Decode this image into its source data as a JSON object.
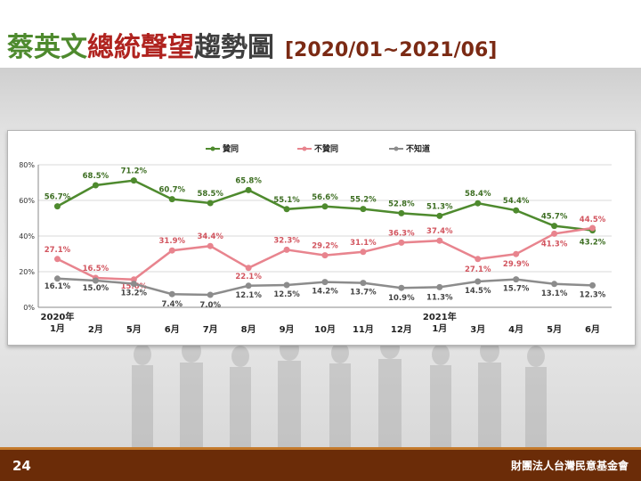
{
  "slide": {
    "title_part1": "蔡英文",
    "title_part2": "總統聲望",
    "title_part3": "趨勢圖",
    "date_range": "[2020/01~2021/06]",
    "page_number": "24",
    "organization": "財團法人台灣民意基金會"
  },
  "colors": {
    "approve": "#4e8a2e",
    "disapprove": "#e8848e",
    "unknown": "#8c8c8c",
    "footer": "#6b2c08"
  },
  "chart_data": {
    "type": "line",
    "categories": [
      "2020年 1月",
      "2月",
      "5月",
      "6月",
      "7月",
      "8月",
      "9月",
      "10月",
      "11月",
      "12月",
      "2021年 1月",
      "3月",
      "4月",
      "5月",
      "6月"
    ],
    "category_lines": [
      [
        "2020年",
        "1月"
      ],
      [
        "2月"
      ],
      [
        "5月"
      ],
      [
        "6月"
      ],
      [
        "7月"
      ],
      [
        "8月"
      ],
      [
        "9月"
      ],
      [
        "10月"
      ],
      [
        "11月"
      ],
      [
        "12月"
      ],
      [
        "2021年",
        "1月"
      ],
      [
        "3月"
      ],
      [
        "4月"
      ],
      [
        "5月"
      ],
      [
        "6月"
      ]
    ],
    "series": [
      {
        "name": "贊同",
        "key": "approve",
        "values": [
          56.7,
          68.5,
          71.2,
          60.7,
          58.5,
          65.8,
          55.1,
          56.6,
          55.2,
          52.8,
          51.3,
          58.4,
          54.4,
          45.7,
          43.2
        ],
        "labels": [
          "56.7%",
          "68.5%",
          "71.2%",
          "60.7%",
          "58.5%",
          "65.8%",
          "55.1%",
          "56.6%",
          "55.2%",
          "52.8%",
          "51.3%",
          "58.4%",
          "54.4%",
          "45.7%",
          "43.2%"
        ]
      },
      {
        "name": "不贊同",
        "key": "disapprove",
        "values": [
          27.1,
          16.5,
          15.6,
          31.9,
          34.4,
          22.1,
          32.3,
          29.2,
          31.1,
          36.3,
          37.4,
          27.1,
          29.9,
          41.3,
          44.5
        ],
        "labels": [
          "27.1%",
          "16.5%",
          "15.6%",
          "31.9%",
          "34.4%",
          "22.1%",
          "32.3%",
          "29.2%",
          "31.1%",
          "36.3%",
          "37.4%",
          "27.1%",
          "29.9%",
          "41.3%",
          "44.5%"
        ]
      },
      {
        "name": "不知道",
        "key": "unknown",
        "values": [
          16.1,
          15.0,
          13.2,
          7.4,
          7.0,
          12.1,
          12.5,
          14.2,
          13.7,
          10.9,
          11.3,
          14.5,
          15.7,
          13.1,
          12.3
        ],
        "labels": [
          "16.1%",
          "15.0%",
          "13.2%",
          "7.4%",
          "7.0%",
          "12.1%",
          "12.5%",
          "14.2%",
          "13.7%",
          "10.9%",
          "11.3%",
          "14.5%",
          "15.7%",
          "13.1%",
          "12.3%"
        ]
      }
    ],
    "y_ticks": [
      "0%",
      "20%",
      "40%",
      "60%",
      "80%"
    ],
    "ylim": [
      0,
      80
    ],
    "grid": true,
    "legend": "top-center"
  }
}
